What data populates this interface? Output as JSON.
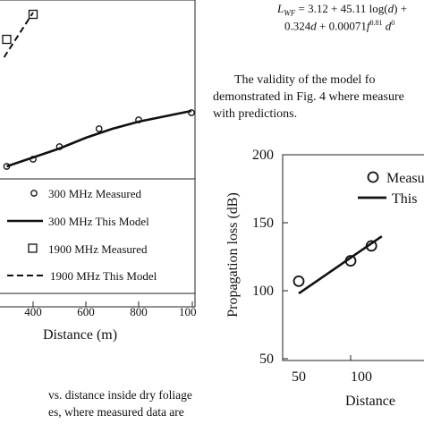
{
  "equation": {
    "line1": "L_WF = 3.12 + 45.11 log(d) +",
    "line2": "0.324d + 0.00071f^0.81 d^0"
  },
  "paragraph": {
    "line1": "The validity of the model fo",
    "line2": "demonstrated in Fig. 4 where measure",
    "line3": "with predictions."
  },
  "caption": {
    "line1": "vs. distance inside dry foliage",
    "line2": "es, where measured data are"
  },
  "chart_data": [
    {
      "type": "line",
      "xlabel": "Distance (m)",
      "ylabel": "",
      "x_ticks": [
        "400",
        "600",
        "800",
        "100"
      ],
      "legend": {
        "placement": "bottom",
        "entries": [
          "300 MHz Measured",
          "300 MHz This Model",
          "1900 MHz Measured",
          "1900 MHz This Model"
        ]
      },
      "series": [
        {
          "name": "300 MHz Measured",
          "marker": "circle",
          "x": [
            300,
            400,
            500,
            650,
            800,
            1000
          ],
          "y": [
            120,
            128,
            142,
            162,
            172,
            180
          ]
        },
        {
          "name": "300 MHz This Model",
          "line": "solid",
          "x": [
            300,
            400,
            500,
            600,
            700,
            800,
            900,
            1000
          ],
          "y": [
            120,
            130,
            140,
            152,
            162,
            170,
            176,
            182
          ]
        },
        {
          "name": "1900 MHz Measured",
          "marker": "square",
          "x": [
            300,
            400
          ],
          "y": [
            262,
            290
          ]
        },
        {
          "name": "1900 MHz This Model",
          "line": "dashed",
          "x": [
            290,
            400
          ],
          "y": [
            242,
            292
          ]
        }
      ]
    },
    {
      "type": "line",
      "xlabel": "Distance",
      "ylabel": "Propagation loss (dB)",
      "ylim": [
        50,
        200
      ],
      "y_ticks": [
        "200",
        "150",
        "100",
        "50"
      ],
      "x_ticks": [
        "50",
        "100"
      ],
      "legend": {
        "placement": "top-right",
        "entries": [
          "Measu",
          "This"
        ]
      },
      "series": [
        {
          "name": "Measu",
          "marker": "circle",
          "x": [
            50,
            100,
            120
          ],
          "y": [
            107,
            122,
            133
          ]
        },
        {
          "name": "This",
          "line": "solid",
          "x": [
            50,
            130
          ],
          "y": [
            98,
            140
          ]
        }
      ]
    }
  ]
}
